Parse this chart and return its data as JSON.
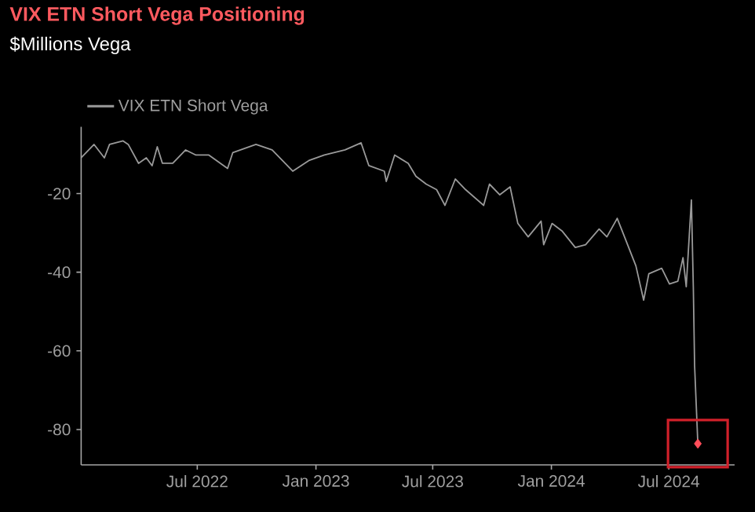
{
  "chart_data": {
    "type": "line",
    "title": "VIX ETN Short Vega Positioning",
    "subtitle": "$Millions Vega",
    "legend": "top left",
    "xlim": [
      "2022-01-02",
      "2024-10-11"
    ],
    "ylim": [
      -89,
      -3
    ],
    "xticks": [
      {
        "value": "2022-07-01",
        "label": "Jul 2022"
      },
      {
        "value": "2023-01-01",
        "label": "Jan 2023"
      },
      {
        "value": "2023-07-01",
        "label": "Jul 2023"
      },
      {
        "value": "2024-01-01",
        "label": "Jan 2024"
      },
      {
        "value": "2024-07-01",
        "label": "Jul 2024"
      }
    ],
    "yticks": [
      -80,
      -60,
      -40,
      -20
    ],
    "series": [
      {
        "name": "VIX ETN Short Vega",
        "color": "#9a9a9a",
        "x": [
          "2022-01-02",
          "2022-01-22",
          "2022-02-07",
          "2022-02-15",
          "2022-03-08",
          "2022-03-16",
          "2022-04-01",
          "2022-04-13",
          "2022-04-22",
          "2022-04-30",
          "2022-05-08",
          "2022-05-24",
          "2022-06-13",
          "2022-06-29",
          "2022-07-19",
          "2022-08-17",
          "2022-08-25",
          "2022-09-30",
          "2022-10-25",
          "2022-11-26",
          "2022-12-21",
          "2023-01-14",
          "2023-02-15",
          "2023-03-12",
          "2023-03-24",
          "2023-04-17",
          "2023-04-20",
          "2023-05-03",
          "2023-05-24",
          "2023-06-05",
          "2023-06-21",
          "2023-07-07",
          "2023-07-20",
          "2023-08-05",
          "2023-08-21",
          "2023-09-18",
          "2023-09-27",
          "2023-10-13",
          "2023-10-29",
          "2023-11-10",
          "2023-11-26",
          "2023-12-16",
          "2023-12-20",
          "2024-01-02",
          "2024-01-18",
          "2024-02-07",
          "2024-02-23",
          "2024-03-15",
          "2024-03-27",
          "2024-04-12",
          "2024-04-20",
          "2024-05-11",
          "2024-05-23",
          "2024-05-31",
          "2024-06-20",
          "2024-07-02",
          "2024-07-15",
          "2024-07-23",
          "2024-07-28",
          "2024-08-05",
          "2024-08-08",
          "2024-08-10",
          "2024-08-15"
        ],
        "values": [
          -10.9,
          -7.5,
          -10.9,
          -7.5,
          -6.6,
          -7.5,
          -12.3,
          -10.9,
          -12.9,
          -8.1,
          -12.3,
          -12.3,
          -8.9,
          -10.2,
          -10.2,
          -13.6,
          -9.6,
          -7.5,
          -8.9,
          -14.3,
          -11.6,
          -10.2,
          -8.9,
          -7.1,
          -12.9,
          -14.3,
          -16.9,
          -10.2,
          -12.3,
          -15.6,
          -17.6,
          -19.0,
          -23.0,
          -16.3,
          -19.0,
          -23.0,
          -17.6,
          -20.3,
          -18.3,
          -27.6,
          -31.0,
          -27.0,
          -33.0,
          -27.6,
          -29.6,
          -33.7,
          -33.0,
          -29.0,
          -31.0,
          -26.3,
          -29.6,
          -38.4,
          -47.1,
          -40.4,
          -39.0,
          -43.0,
          -42.3,
          -36.3,
          -43.7,
          -21.6,
          -43.7,
          -63.8,
          -83.6
        ]
      },
      {
        "type": "scatter",
        "color": "#ff4d5a",
        "marker": "diamond",
        "x": [
          "2024-08-15"
        ],
        "values": [
          -83.6
        ]
      }
    ]
  }
}
